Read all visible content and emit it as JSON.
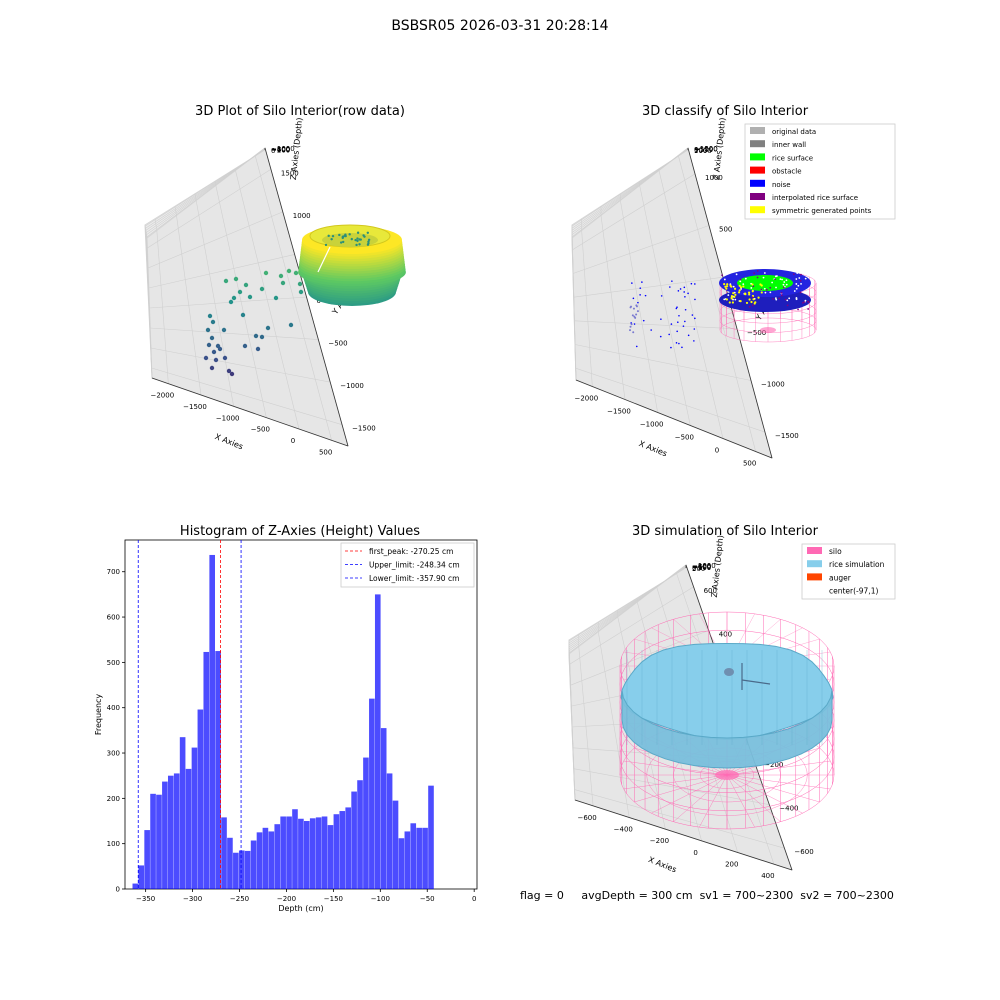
{
  "suptitle": "BSBSR05 2026-03-31 20:28:14",
  "footer": {
    "flag": "flag = 0",
    "avg": "avgDepth = 300 cm",
    "sv1": "sv1 = 700~2300",
    "sv2": "sv2 = 700~2300"
  },
  "colors": {
    "hist_bar": "#0000ff",
    "first_peak": "#ff0000",
    "limit_lines": "#0000ff",
    "silo": "#ff69b4",
    "rice_simulation": "#87ceeb",
    "auger": "#ff4500",
    "original_data": "#b0b0b0",
    "inner_wall": "#808080",
    "rice_surface": "#00ff00",
    "obstacle": "#ff0000",
    "noise": "#0000ff",
    "interpolated_rice_surface": "#800080",
    "symmetric_generated_points": "#ffff00"
  },
  "chart_data": [
    {
      "type": "scatter",
      "projection": "3d",
      "title": "3D Plot of Silo Interior(row data)",
      "xlabel": "X Axies",
      "ylabel": "Y Axies",
      "zlabel": "Z Axies (Depth)",
      "xticks": [
        "−2000",
        "−1500",
        "−1000",
        "−500",
        "0",
        "500"
      ],
      "yticks": [
        "−1500",
        "−1000",
        "−500",
        "0",
        "500",
        "1000",
        "1500"
      ],
      "zticks": [
        "0",
        "−200",
        "−400",
        "−600",
        "−800",
        "−1000"
      ],
      "colormap": "viridis",
      "grid": true
    },
    {
      "type": "scatter",
      "projection": "3d",
      "title": "3D classify of Silo Interior",
      "xlabel": "X Axies",
      "ylabel": "Y Axies",
      "zlabel": "Z Axies (Depth)",
      "xticks": [
        "−2000",
        "−1500",
        "−1000",
        "−500",
        "0",
        "500"
      ],
      "yticks": [
        "−1500",
        "−1000",
        "−500",
        "0",
        "500",
        "1000"
      ],
      "zticks": [
        "1000",
        "500",
        "0",
        "−500",
        "−1000",
        "−1500"
      ],
      "legend": [
        "original data",
        "inner wall",
        "rice surface",
        "obstacle",
        "noise",
        "interpolated rice surface",
        "symmetric generated points"
      ],
      "legend_position": "top-right",
      "grid": true
    },
    {
      "type": "bar",
      "title": "Histogram of Z-Axies (Height) Values",
      "xlabel": "Depth (cm)",
      "ylabel": "Frequency",
      "xlim": [
        -372,
        3
      ],
      "ylim": [
        0,
        770
      ],
      "xticks": [
        -350,
        -300,
        -250,
        -200,
        -150,
        -100,
        -50,
        0
      ],
      "xtick_labels": [
        "−350",
        "−300",
        "−250",
        "−200",
        "−150",
        "−100",
        "−50",
        "0"
      ],
      "yticks": [
        0,
        100,
        200,
        300,
        400,
        500,
        600,
        700
      ],
      "bin_start": -364,
      "bin_width": 6.3,
      "values": [
        12,
        52,
        130,
        210,
        208,
        237,
        250,
        255,
        335,
        265,
        312,
        396,
        523,
        737,
        525,
        158,
        113,
        80,
        85,
        84,
        107,
        125,
        135,
        127,
        143,
        160,
        160,
        176,
        155,
        150,
        156,
        158,
        160,
        141,
        165,
        172,
        180,
        215,
        240,
        290,
        420,
        650,
        355,
        255,
        195,
        112,
        127,
        145,
        135,
        135,
        228
      ],
      "vlines": [
        {
          "x": -270.25,
          "label": "first_peak: -270.25 cm",
          "style": "dashed",
          "color": "red"
        },
        {
          "x": -248.34,
          "label": "Upper_limit: -248.34 cm",
          "style": "dashed",
          "color": "blue"
        },
        {
          "x": -357.9,
          "label": "Lower_limit: -357.90 cm",
          "style": "dashed",
          "color": "blue"
        }
      ],
      "legend_position": "top-right",
      "grid": false
    },
    {
      "type": "surface",
      "projection": "3d",
      "title": "3D simulation of Silo Interior",
      "xlabel": "X Axies",
      "ylabel": "Y Axies",
      "zlabel": "Z Axies (Depth)",
      "xticks": [
        "−600",
        "−400",
        "−200",
        "0",
        "200",
        "400"
      ],
      "yticks": [
        "−600",
        "−400",
        "−200",
        "0",
        "200",
        "400",
        "600"
      ],
      "zticks": [
        "200",
        "0",
        "−200",
        "−400",
        "−600",
        "−800",
        "−1000"
      ],
      "legend": [
        "silo",
        "rice simulation",
        "auger",
        "center(-97,1)"
      ],
      "legend_position": "top-right",
      "grid": true
    }
  ]
}
